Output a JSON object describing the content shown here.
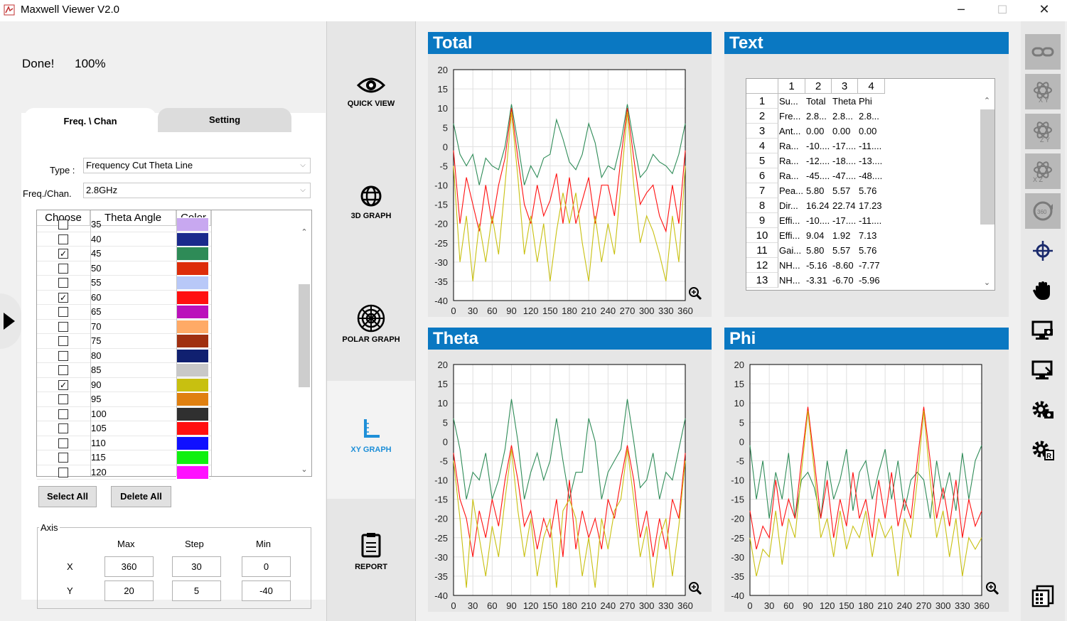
{
  "app": {
    "title": "Maxwell Viewer V2.0",
    "minimize": "─",
    "maximize": "☐",
    "close": "✕"
  },
  "status": {
    "message": "Done!",
    "percent": "100%"
  },
  "tabs": [
    {
      "label": "Freq. \\ Chan"
    },
    {
      "label": "Setting"
    }
  ],
  "form": {
    "type_label": "Type :",
    "type_value": "Frequency Cut Theta Line",
    "freq_label": "Freq./Chan.",
    "freq_value": "2.8GHz"
  },
  "angle_table": {
    "headers": [
      "Choose",
      "Theta Angle",
      "Color"
    ],
    "rows": [
      {
        "angle": "35",
        "checked": false,
        "color": "#c8a8f0"
      },
      {
        "angle": "40",
        "checked": false,
        "color": "#1a2a8c"
      },
      {
        "angle": "45",
        "checked": true,
        "color": "#2e8b57"
      },
      {
        "angle": "50",
        "checked": false,
        "color": "#dd2d0a"
      },
      {
        "angle": "55",
        "checked": false,
        "color": "#b8c8f8"
      },
      {
        "angle": "60",
        "checked": true,
        "color": "#ff1010"
      },
      {
        "angle": "65",
        "checked": false,
        "color": "#bb10bb"
      },
      {
        "angle": "70",
        "checked": false,
        "color": "#ffaa66"
      },
      {
        "angle": "75",
        "checked": false,
        "color": "#a03010"
      },
      {
        "angle": "80",
        "checked": false,
        "color": "#102070"
      },
      {
        "angle": "85",
        "checked": false,
        "color": "#c8c8c8"
      },
      {
        "angle": "90",
        "checked": true,
        "color": "#c8c010"
      },
      {
        "angle": "95",
        "checked": false,
        "color": "#e08010"
      },
      {
        "angle": "100",
        "checked": false,
        "color": "#303030"
      },
      {
        "angle": "105",
        "checked": false,
        "color": "#ff1010"
      },
      {
        "angle": "110",
        "checked": false,
        "color": "#1010ff"
      },
      {
        "angle": "115",
        "checked": false,
        "color": "#10f010"
      },
      {
        "angle": "120",
        "checked": false,
        "color": "#ff10ff"
      }
    ]
  },
  "buttons": {
    "select_all": "Select All",
    "delete_all": "Delete All"
  },
  "axis": {
    "title": "Axis",
    "col_max": "Max",
    "col_step": "Step",
    "col_min": "Min",
    "x_label": "X",
    "y_label": "Y",
    "x_max": "360",
    "x_step": "30",
    "x_min": "0",
    "y_max": "20",
    "y_step": "5",
    "y_min": "-40"
  },
  "nav": [
    {
      "label": "QUICK VIEW",
      "icon": "eye-icon"
    },
    {
      "label": "3D GRAPH",
      "icon": "globe-icon"
    },
    {
      "label": "POLAR GRAPH",
      "icon": "polar-icon"
    },
    {
      "label": "XY GRAPH",
      "icon": "xy-axis-icon",
      "selected": true
    },
    {
      "label": "REPORT",
      "icon": "clipboard-icon"
    }
  ],
  "panels": {
    "total": "Total",
    "text": "Text",
    "theta": "Theta",
    "phi": "Phi"
  },
  "text_table": {
    "headers": [
      "",
      "1",
      "2",
      "3",
      "4"
    ],
    "rows": [
      [
        "1",
        "Su...",
        "Total",
        "Theta",
        "Phi"
      ],
      [
        "2",
        "Fre...",
        "2.8...",
        "2.8...",
        "2.8..."
      ],
      [
        "3",
        "Ant...",
        "0.00",
        "0.00",
        "0.00"
      ],
      [
        "4",
        "Ra...",
        "-10....",
        "-17....",
        "-11...."
      ],
      [
        "5",
        "Ra...",
        "-12....",
        "-18....",
        "-13...."
      ],
      [
        "6",
        "Ra...",
        "-45....",
        "-47....",
        "-48...."
      ],
      [
        "7",
        "Pea...",
        "5.80",
        "5.57",
        "5.76"
      ],
      [
        "8",
        "Dir...",
        "16.24",
        "22.74",
        "17.23"
      ],
      [
        "9",
        "Effi...",
        "-10....",
        "-17....",
        "-11...."
      ],
      [
        "10",
        "Effi...",
        "9.04",
        "1.92",
        "7.13"
      ],
      [
        "11",
        "Gai...",
        "5.80",
        "5.57",
        "5.76"
      ],
      [
        "12",
        "NH...",
        "-5.16",
        "-8.60",
        "-7.77"
      ],
      [
        "13",
        "NH...",
        "-3.31",
        "-6.70",
        "-5.96"
      ]
    ]
  },
  "chart_data": [
    {
      "id": "total",
      "type": "line",
      "xlim": [
        0,
        360
      ],
      "ylim": [
        -40,
        20
      ],
      "xticks": [
        0,
        30,
        60,
        90,
        120,
        150,
        180,
        210,
        240,
        270,
        300,
        330,
        360
      ],
      "yticks": [
        20,
        15,
        10,
        5,
        0,
        -5,
        -10,
        -15,
        -20,
        -25,
        -30,
        -35,
        -40
      ],
      "grid": true,
      "series": [
        {
          "color": "#2e8b57",
          "x": [
            0,
            10,
            20,
            30,
            40,
            50,
            60,
            70,
            80,
            90,
            100,
            110,
            120,
            130,
            140,
            150,
            160,
            170,
            180,
            190,
            200,
            210,
            220,
            230,
            240,
            250,
            260,
            270,
            280,
            290,
            300,
            310,
            320,
            330,
            340,
            350,
            360
          ],
          "y": [
            6,
            -2,
            -5,
            -2,
            -10,
            -3,
            -5,
            -6,
            0,
            11,
            1,
            -10,
            -5,
            -8,
            -3,
            -2,
            7,
            2,
            -4,
            -6,
            -2,
            6,
            1,
            -8,
            -5,
            -6,
            1,
            11,
            1,
            -8,
            -6,
            -2,
            -4,
            -5,
            -7,
            -2,
            6
          ]
        },
        {
          "color": "#ff1010",
          "x": [
            0,
            10,
            20,
            30,
            40,
            50,
            60,
            70,
            80,
            90,
            100,
            110,
            120,
            130,
            140,
            150,
            160,
            170,
            180,
            190,
            200,
            210,
            220,
            230,
            240,
            250,
            260,
            270,
            280,
            290,
            300,
            310,
            320,
            330,
            340,
            350,
            360
          ],
          "y": [
            -1,
            -20,
            -8,
            -15,
            -22,
            -10,
            -20,
            -10,
            -3,
            10,
            -3,
            -15,
            -20,
            -10,
            -18,
            -14,
            -7,
            -20,
            -8,
            -20,
            -14,
            -8,
            -20,
            -10,
            -10,
            -18,
            -3,
            10,
            -3,
            -15,
            -12,
            -10,
            -18,
            -22,
            -10,
            -20,
            -1
          ]
        },
        {
          "color": "#c8c010",
          "x": [
            0,
            10,
            20,
            30,
            40,
            50,
            60,
            70,
            80,
            90,
            100,
            110,
            120,
            130,
            140,
            150,
            160,
            170,
            180,
            190,
            200,
            210,
            220,
            230,
            240,
            250,
            260,
            270,
            280,
            290,
            300,
            310,
            320,
            330,
            340,
            350,
            360
          ],
          "y": [
            -5,
            -30,
            -18,
            -35,
            -20,
            -30,
            -18,
            -28,
            -10,
            9,
            -8,
            -28,
            -18,
            -30,
            -20,
            -35,
            -22,
            -12,
            -20,
            -12,
            -25,
            -35,
            -18,
            -30,
            -20,
            -28,
            -10,
            9,
            -10,
            -25,
            -18,
            -22,
            -28,
            -35,
            -18,
            -30,
            -5
          ]
        }
      ]
    },
    {
      "id": "theta",
      "type": "line",
      "xlim": [
        0,
        360
      ],
      "ylim": [
        -40,
        20
      ],
      "xticks": [
        0,
        30,
        60,
        90,
        120,
        150,
        180,
        210,
        240,
        270,
        300,
        330,
        360
      ],
      "yticks": [
        20,
        15,
        10,
        5,
        0,
        -5,
        -10,
        -15,
        -20,
        -25,
        -30,
        -35,
        -40
      ],
      "grid": true,
      "series": [
        {
          "color": "#2e8b57",
          "x": [
            0,
            10,
            20,
            30,
            40,
            50,
            60,
            70,
            80,
            90,
            100,
            110,
            120,
            130,
            140,
            150,
            160,
            170,
            180,
            190,
            200,
            210,
            220,
            230,
            240,
            250,
            260,
            270,
            280,
            290,
            300,
            310,
            320,
            330,
            340,
            350,
            360
          ],
          "y": [
            6,
            -2,
            -15,
            -8,
            -10,
            -3,
            -15,
            -10,
            -2,
            11,
            0,
            -15,
            -8,
            -3,
            -10,
            -5,
            6,
            -5,
            -15,
            -8,
            -8,
            6,
            0,
            -15,
            -8,
            -5,
            -2,
            11,
            0,
            -12,
            -10,
            -3,
            -15,
            -8,
            -10,
            -2,
            6
          ]
        },
        {
          "color": "#ff1010",
          "x": [
            0,
            10,
            20,
            30,
            40,
            50,
            60,
            70,
            80,
            90,
            100,
            110,
            120,
            130,
            140,
            150,
            160,
            170,
            180,
            190,
            200,
            210,
            220,
            230,
            240,
            250,
            260,
            270,
            280,
            290,
            300,
            310,
            320,
            330,
            340,
            350,
            360
          ],
          "y": [
            -3,
            -15,
            -20,
            -30,
            -18,
            -25,
            -15,
            -22,
            -10,
            -1,
            -10,
            -22,
            -18,
            -28,
            -20,
            -25,
            -15,
            -30,
            -10,
            -28,
            -18,
            -25,
            -20,
            -28,
            -15,
            -20,
            -10,
            -1,
            -10,
            -25,
            -18,
            -30,
            -20,
            -28,
            -15,
            -20,
            -3
          ]
        },
        {
          "color": "#c8c010",
          "x": [
            0,
            10,
            20,
            30,
            40,
            50,
            60,
            70,
            80,
            90,
            100,
            110,
            120,
            130,
            140,
            150,
            160,
            170,
            180,
            190,
            200,
            210,
            220,
            230,
            240,
            250,
            260,
            270,
            280,
            290,
            300,
            310,
            320,
            330,
            340,
            350,
            360
          ],
          "y": [
            -5,
            -20,
            -38,
            -15,
            -25,
            -35,
            -22,
            -30,
            -15,
            -2,
            -18,
            -30,
            -20,
            -35,
            -25,
            -20,
            -38,
            -18,
            -15,
            -20,
            -35,
            -25,
            -38,
            -20,
            -28,
            -18,
            -15,
            -2,
            -15,
            -30,
            -22,
            -38,
            -25,
            -20,
            -35,
            -22,
            -5
          ]
        }
      ]
    },
    {
      "id": "phi",
      "type": "line",
      "xlim": [
        0,
        360
      ],
      "ylim": [
        -40,
        20
      ],
      "xticks": [
        0,
        30,
        60,
        90,
        120,
        150,
        180,
        210,
        240,
        270,
        300,
        330,
        360
      ],
      "yticks": [
        20,
        15,
        10,
        5,
        0,
        -5,
        -10,
        -15,
        -20,
        -25,
        -30,
        -35,
        -40
      ],
      "grid": true,
      "series": [
        {
          "color": "#2e8b57",
          "x": [
            0,
            10,
            20,
            30,
            40,
            50,
            60,
            70,
            80,
            90,
            100,
            110,
            120,
            130,
            140,
            150,
            160,
            170,
            180,
            190,
            200,
            210,
            220,
            230,
            240,
            250,
            260,
            270,
            280,
            290,
            300,
            310,
            320,
            330,
            340,
            350,
            360
          ],
          "y": [
            -1,
            -15,
            -5,
            -20,
            -8,
            -15,
            -3,
            -20,
            -10,
            -8,
            -12,
            -20,
            -5,
            -15,
            -10,
            -2,
            -18,
            -8,
            -5,
            -15,
            -8,
            -2,
            -15,
            -5,
            -18,
            -10,
            -8,
            -10,
            -20,
            -5,
            -15,
            -8,
            -18,
            -3,
            -15,
            -5,
            -1
          ]
        },
        {
          "color": "#ff1010",
          "x": [
            0,
            10,
            20,
            30,
            40,
            50,
            60,
            70,
            80,
            90,
            100,
            110,
            120,
            130,
            140,
            150,
            160,
            170,
            180,
            190,
            200,
            210,
            220,
            230,
            240,
            250,
            260,
            270,
            280,
            290,
            300,
            310,
            320,
            330,
            340,
            350,
            360
          ],
          "y": [
            -18,
            -28,
            -22,
            -25,
            -10,
            -22,
            -15,
            -20,
            -5,
            9,
            -5,
            -20,
            -10,
            -25,
            -15,
            -22,
            -8,
            -20,
            -15,
            -25,
            -10,
            -20,
            -8,
            -22,
            -15,
            -20,
            -5,
            9,
            -5,
            -20,
            -12,
            -22,
            -10,
            -25,
            -15,
            -22,
            -18
          ]
        },
        {
          "color": "#c8c010",
          "x": [
            0,
            10,
            20,
            30,
            40,
            50,
            60,
            70,
            80,
            90,
            100,
            110,
            120,
            130,
            140,
            150,
            160,
            170,
            180,
            190,
            200,
            210,
            220,
            230,
            240,
            250,
            260,
            270,
            280,
            290,
            300,
            310,
            320,
            330,
            340,
            350,
            360
          ],
          "y": [
            -25,
            -35,
            -28,
            -30,
            -18,
            -32,
            -20,
            -25,
            -8,
            8,
            -8,
            -25,
            -20,
            -30,
            -18,
            -28,
            -22,
            -25,
            -18,
            -30,
            -20,
            -25,
            -22,
            -35,
            -20,
            -25,
            -10,
            8,
            -10,
            -25,
            -18,
            -30,
            -20,
            -35,
            -25,
            -28,
            -25
          ]
        }
      ]
    }
  ]
}
